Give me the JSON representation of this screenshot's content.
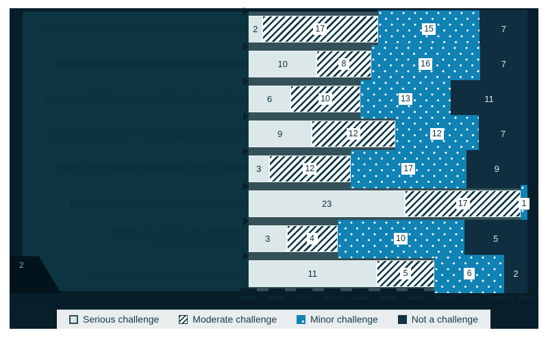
{
  "chart_data": {
    "type": "bar",
    "orientation": "horizontal",
    "stacked": true,
    "normalized": "each row rendered as 100% of bar width",
    "series_keys": [
      "serious",
      "moderate",
      "minor",
      "not"
    ],
    "series_names": [
      "Serious challenge",
      "Moderate challenge",
      "Minor challenge",
      "Not a challenge"
    ],
    "rows": [
      {
        "values": [
          2,
          17,
          15,
          7
        ]
      },
      {
        "values": [
          10,
          8,
          16,
          7
        ]
      },
      {
        "values": [
          6,
          10,
          13,
          11
        ]
      },
      {
        "values": [
          9,
          12,
          12,
          7
        ]
      },
      {
        "values": [
          3,
          12,
          17,
          9
        ]
      },
      {
        "values": [
          23,
          17,
          1,
          0
        ]
      },
      {
        "values": [
          3,
          4,
          10,
          5
        ]
      },
      {
        "values": [
          11,
          5,
          6,
          2
        ]
      }
    ],
    "row_labels_illegible": true,
    "row_labels_note": "Row category labels are rendered in near-background dark color and are not legible in the screenshot",
    "x_axis": {
      "ticks": [
        "0%",
        "10%",
        "20%",
        "30%",
        "40%",
        "50%",
        "60%",
        "70%",
        "80%",
        "90%",
        "100%"
      ],
      "labels_illegible": true
    },
    "legend_position": "bottom",
    "footnote_marker": "2"
  },
  "legend": {
    "items": [
      {
        "label": "Serious challenge",
        "pattern": "light-solid",
        "color": "#dbe7e8"
      },
      {
        "label": "Moderate challenge",
        "pattern": "diagonal-hatch",
        "color": "#103846"
      },
      {
        "label": "Minor challenge",
        "pattern": "dotted",
        "color": "#1182b4"
      },
      {
        "label": "Not a challenge",
        "pattern": "dark-solid",
        "color": "#0f2e3f"
      }
    ]
  },
  "colors": {
    "page_margin": "#ffffff",
    "panel_background": "#081f2b",
    "plot_background": "#0d3541",
    "row_gap_band": "#345058",
    "serious": "#dbe7e8",
    "moderate_stripe": "#103846",
    "minor_blue": "#1182b4",
    "not_a_challenge": "#0f2e3f",
    "value_box": "#ffffff",
    "legend_strip": "#e9eded",
    "legend_text": "#14384a"
  }
}
